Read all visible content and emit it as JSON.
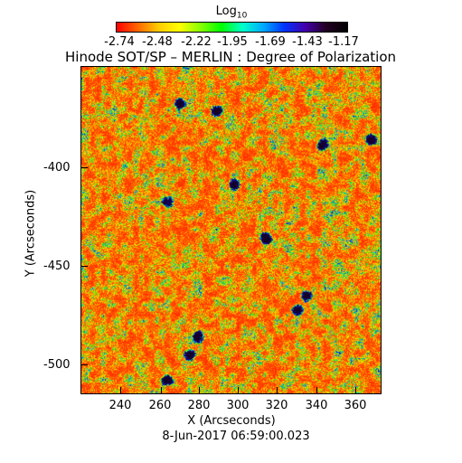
{
  "colorbar": {
    "title": "Log",
    "title_sub": "10",
    "tick_labels": [
      "-2.74",
      "-2.48",
      "-2.22",
      "-1.95",
      "-1.69",
      "-1.43",
      "-1.17"
    ],
    "colors": [
      "#ff0000",
      "#ff6600",
      "#ffcc00",
      "#ffff00",
      "#88ff00",
      "#00ff00",
      "#00ffcc",
      "#00aaff",
      "#0033ff",
      "#4400aa",
      "#220022",
      "#000000"
    ]
  },
  "title": "Hinode SOT/SP – MERLIN : Degree of Polarization",
  "image": {
    "x_ticks": [
      "240",
      "260",
      "280",
      "300",
      "320",
      "340",
      "360"
    ],
    "y_ticks": [
      "-400",
      "-450",
      "-500"
    ],
    "xlabel": "X (Arcseconds)",
    "ylabel": "Y (Arcseconds)",
    "timestamp": "8-Jun-2017 06:59:00.023"
  }
}
